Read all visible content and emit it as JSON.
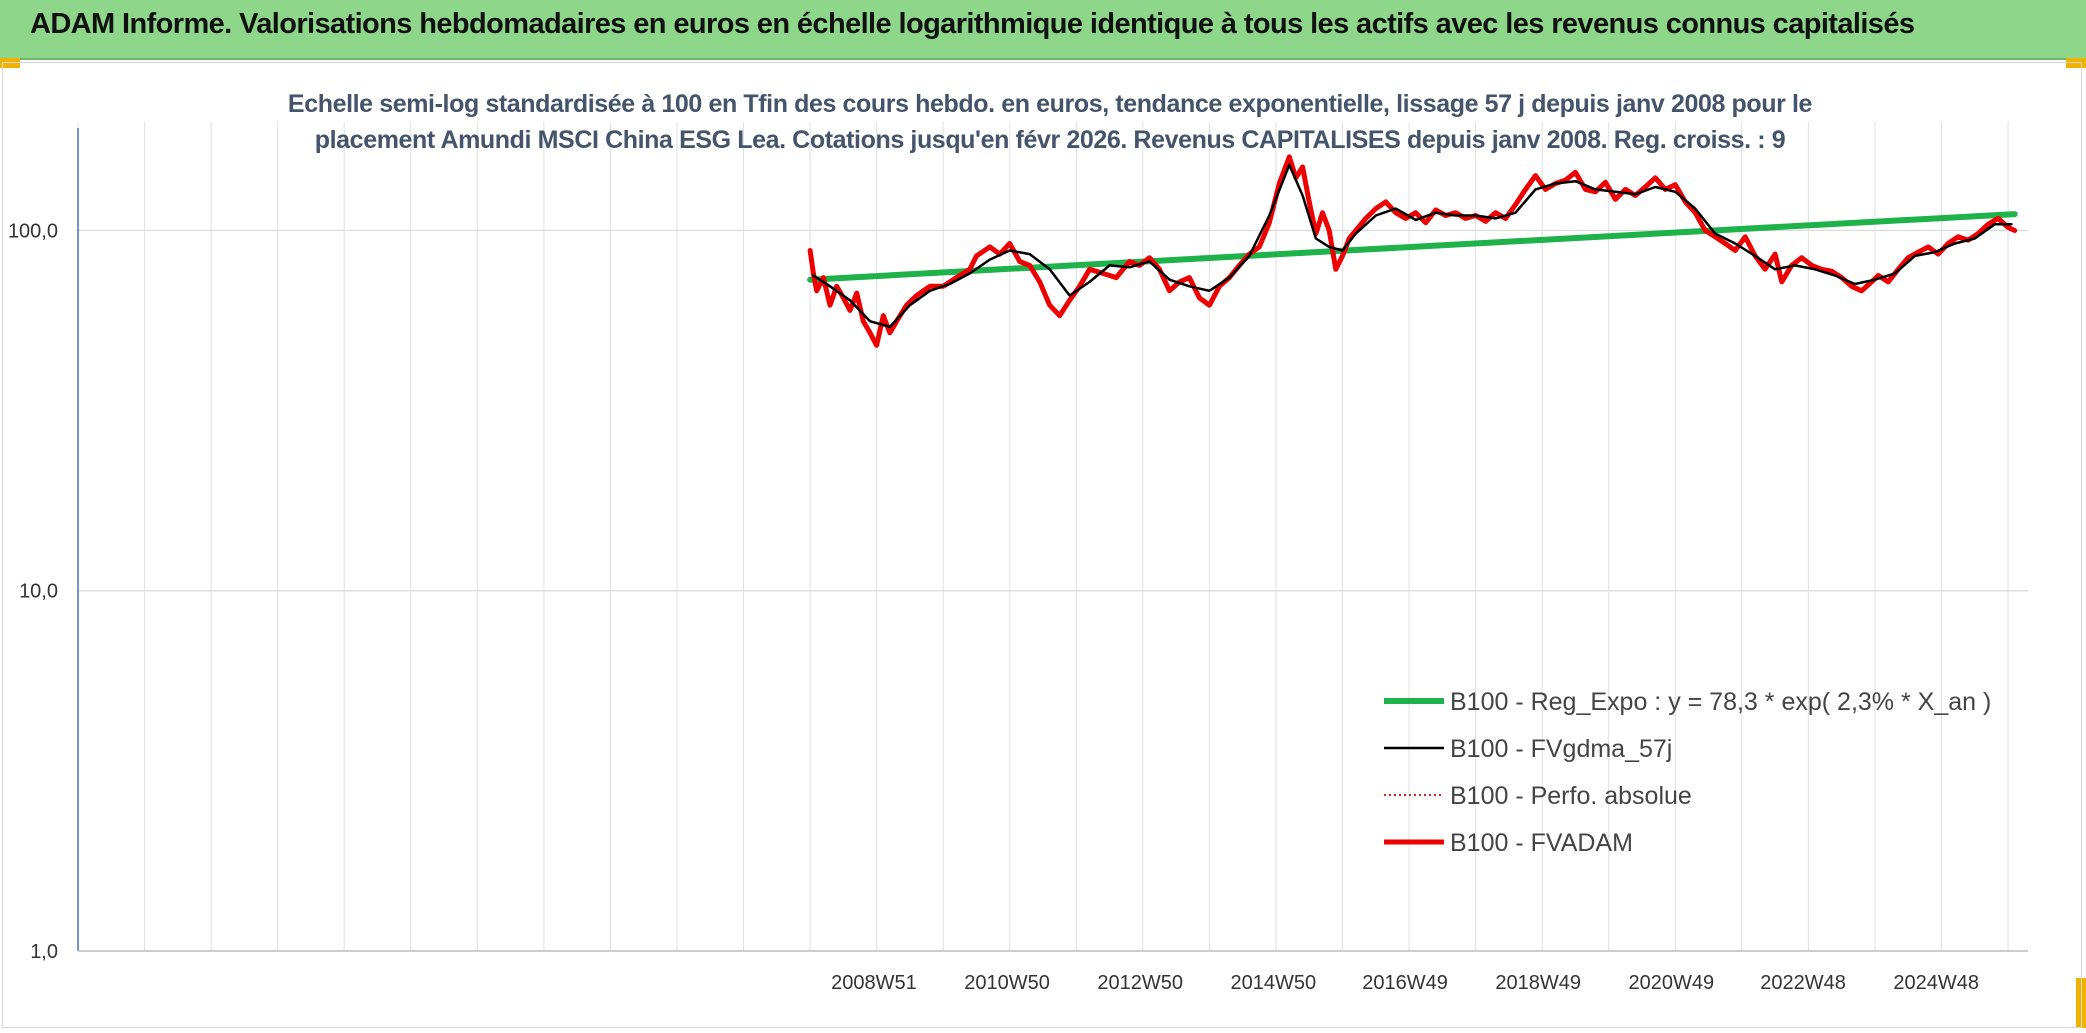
{
  "header": {
    "title": "ADAM Informe. Valorisations hebdomadaires en euros en échelle logarithmique identique à tous les actifs avec les revenus connus capitalisés"
  },
  "chart_data": {
    "type": "line",
    "title": "Echelle semi-log standardisée à 100 en Tfin des cours hebdo. en euros, tendance exponentielle, lissage 57 j depuis janv 2008 pour le placement Amundi MSCI China ESG Lea. Cotations jusqu'en févr 2026. Revenus CAPITALISES depuis janv 2008. Reg. croiss. : 9",
    "title_lines": [
      "Echelle semi-log standardisée à 100 en Tfin des cours hebdo. en euros, tendance exponentielle, lissage 57 j depuis janv 2008 pour le",
      "placement Amundi MSCI China ESG Lea. Cotations jusqu'en févr 2026. Revenus CAPITALISES depuis janv 2008. Reg. croiss. : 9"
    ],
    "y_scale": "log",
    "ylim": [
      1,
      200
    ],
    "y_ticks": [
      {
        "value": 1,
        "label": "1,0"
      },
      {
        "value": 10,
        "label": "10,0"
      },
      {
        "value": 100,
        "label": "100,0"
      }
    ],
    "xlim": [
      1997.0,
      2026.3
    ],
    "x_ticks": [
      {
        "value": 2008.96,
        "label": "2008W51"
      },
      {
        "value": 2010.96,
        "label": "2010W50"
      },
      {
        "value": 2012.96,
        "label": "2012W50"
      },
      {
        "value": 2014.96,
        "label": "2014W50"
      },
      {
        "value": 2016.94,
        "label": "2016W49"
      },
      {
        "value": 2018.94,
        "label": "2018W49"
      },
      {
        "value": 2020.94,
        "label": "2020W49"
      },
      {
        "value": 2022.92,
        "label": "2022W48"
      },
      {
        "value": 2024.92,
        "label": "2024W48"
      }
    ],
    "vgrid_start": 1997.0,
    "vgrid_step": 1.0,
    "grid": true,
    "legend_position": "lower-right",
    "series": [
      {
        "name": "B100 - Reg_Expo : y = 78,3 * exp( 2,3% *  X_an )",
        "color": "#1fb24a",
        "style": "solid",
        "width": 6,
        "x": [
          2008.0,
          2026.1
        ],
        "y": [
          73.0,
          111.0
        ]
      },
      {
        "name": "B100 - FVgdma_57j",
        "color": "#000000",
        "style": "solid",
        "width": 2.5,
        "x": [
          2008.05,
          2008.3,
          2008.6,
          2008.9,
          2009.2,
          2009.5,
          2009.8,
          2010.1,
          2010.4,
          2010.7,
          2011.0,
          2011.3,
          2011.6,
          2011.9,
          2012.2,
          2012.5,
          2012.8,
          2013.1,
          2013.4,
          2013.7,
          2014.0,
          2014.3,
          2014.6,
          2014.9,
          2015.2,
          2015.4,
          2015.6,
          2015.8,
          2016.0,
          2016.2,
          2016.5,
          2016.8,
          2017.1,
          2017.4,
          2017.7,
          2018.0,
          2018.3,
          2018.6,
          2018.9,
          2019.2,
          2019.5,
          2019.8,
          2020.1,
          2020.4,
          2020.7,
          2021.0,
          2021.3,
          2021.6,
          2021.9,
          2022.2,
          2022.5,
          2022.8,
          2023.1,
          2023.4,
          2023.7,
          2024.0,
          2024.3,
          2024.6,
          2024.9,
          2025.2,
          2025.5,
          2025.8,
          2026.05
        ],
        "y": [
          75,
          70,
          64,
          56,
          54,
          62,
          68,
          71,
          76,
          83,
          88,
          86,
          78,
          66,
          72,
          80,
          79,
          82,
          73,
          70,
          68,
          74,
          85,
          110,
          152,
          125,
          95,
          90,
          88,
          98,
          110,
          115,
          107,
          112,
          110,
          110,
          108,
          112,
          130,
          135,
          137,
          130,
          128,
          126,
          132,
          128,
          115,
          98,
          92,
          85,
          78,
          80,
          78,
          75,
          71,
          73,
          76,
          85,
          87,
          92,
          95,
          104,
          104
        ]
      },
      {
        "name": "B100 - Perfo. absolue",
        "color": "#e02020",
        "style": "dotted",
        "width": 2,
        "x": [],
        "y": []
      },
      {
        "name": "B100 - FVADAM",
        "color": "#ee0000",
        "style": "solid",
        "width": 5,
        "x": [
          2008.0,
          2008.05,
          2008.1,
          2008.2,
          2008.3,
          2008.4,
          2008.5,
          2008.6,
          2008.7,
          2008.8,
          2008.9,
          2009.0,
          2009.1,
          2009.2,
          2009.3,
          2009.45,
          2009.6,
          2009.8,
          2010.0,
          2010.2,
          2010.4,
          2010.5,
          2010.7,
          2010.85,
          2011.0,
          2011.15,
          2011.3,
          2011.45,
          2011.6,
          2011.75,
          2011.9,
          2012.05,
          2012.2,
          2012.4,
          2012.6,
          2012.8,
          2012.95,
          2013.1,
          2013.25,
          2013.4,
          2013.55,
          2013.7,
          2013.85,
          2014.0,
          2014.15,
          2014.3,
          2014.45,
          2014.6,
          2014.75,
          2014.9,
          2015.05,
          2015.2,
          2015.3,
          2015.4,
          2015.5,
          2015.6,
          2015.7,
          2015.8,
          2015.9,
          2016.0,
          2016.1,
          2016.2,
          2016.35,
          2016.5,
          2016.65,
          2016.8,
          2016.95,
          2017.1,
          2017.25,
          2017.4,
          2017.55,
          2017.7,
          2017.85,
          2018.0,
          2018.15,
          2018.3,
          2018.45,
          2018.6,
          2018.75,
          2018.9,
          2019.05,
          2019.2,
          2019.35,
          2019.5,
          2019.65,
          2019.8,
          2019.95,
          2020.1,
          2020.25,
          2020.4,
          2020.55,
          2020.7,
          2020.85,
          2021.0,
          2021.15,
          2021.3,
          2021.45,
          2021.6,
          2021.75,
          2021.9,
          2022.05,
          2022.2,
          2022.35,
          2022.5,
          2022.6,
          2022.75,
          2022.9,
          2023.05,
          2023.2,
          2023.35,
          2023.5,
          2023.65,
          2023.8,
          2023.95,
          2024.05,
          2024.2,
          2024.35,
          2024.5,
          2024.65,
          2024.8,
          2024.95,
          2025.1,
          2025.25,
          2025.4,
          2025.55,
          2025.7,
          2025.85,
          2026.0,
          2026.1
        ],
        "y": [
          88,
          76,
          68,
          74,
          62,
          70,
          65,
          60,
          67,
          56,
          52,
          48,
          58,
          52,
          56,
          62,
          66,
          70,
          70,
          74,
          78,
          85,
          90,
          86,
          92,
          82,
          80,
          72,
          62,
          58,
          64,
          70,
          78,
          76,
          74,
          82,
          80,
          84,
          78,
          68,
          72,
          74,
          65,
          62,
          70,
          74,
          80,
          86,
          90,
          105,
          135,
          160,
          140,
          150,
          120,
          98,
          112,
          100,
          78,
          85,
          95,
          100,
          108,
          115,
          120,
          112,
          108,
          112,
          105,
          114,
          110,
          112,
          108,
          110,
          106,
          112,
          108,
          118,
          130,
          142,
          130,
          135,
          138,
          145,
          130,
          128,
          136,
          122,
          130,
          125,
          132,
          140,
          130,
          134,
          120,
          112,
          100,
          96,
          92,
          88,
          96,
          85,
          78,
          86,
          72,
          80,
          84,
          80,
          78,
          77,
          74,
          70,
          68,
          72,
          75,
          72,
          78,
          84,
          87,
          90,
          86,
          92,
          96,
          94,
          98,
          104,
          108,
          102,
          100
        ]
      }
    ]
  }
}
